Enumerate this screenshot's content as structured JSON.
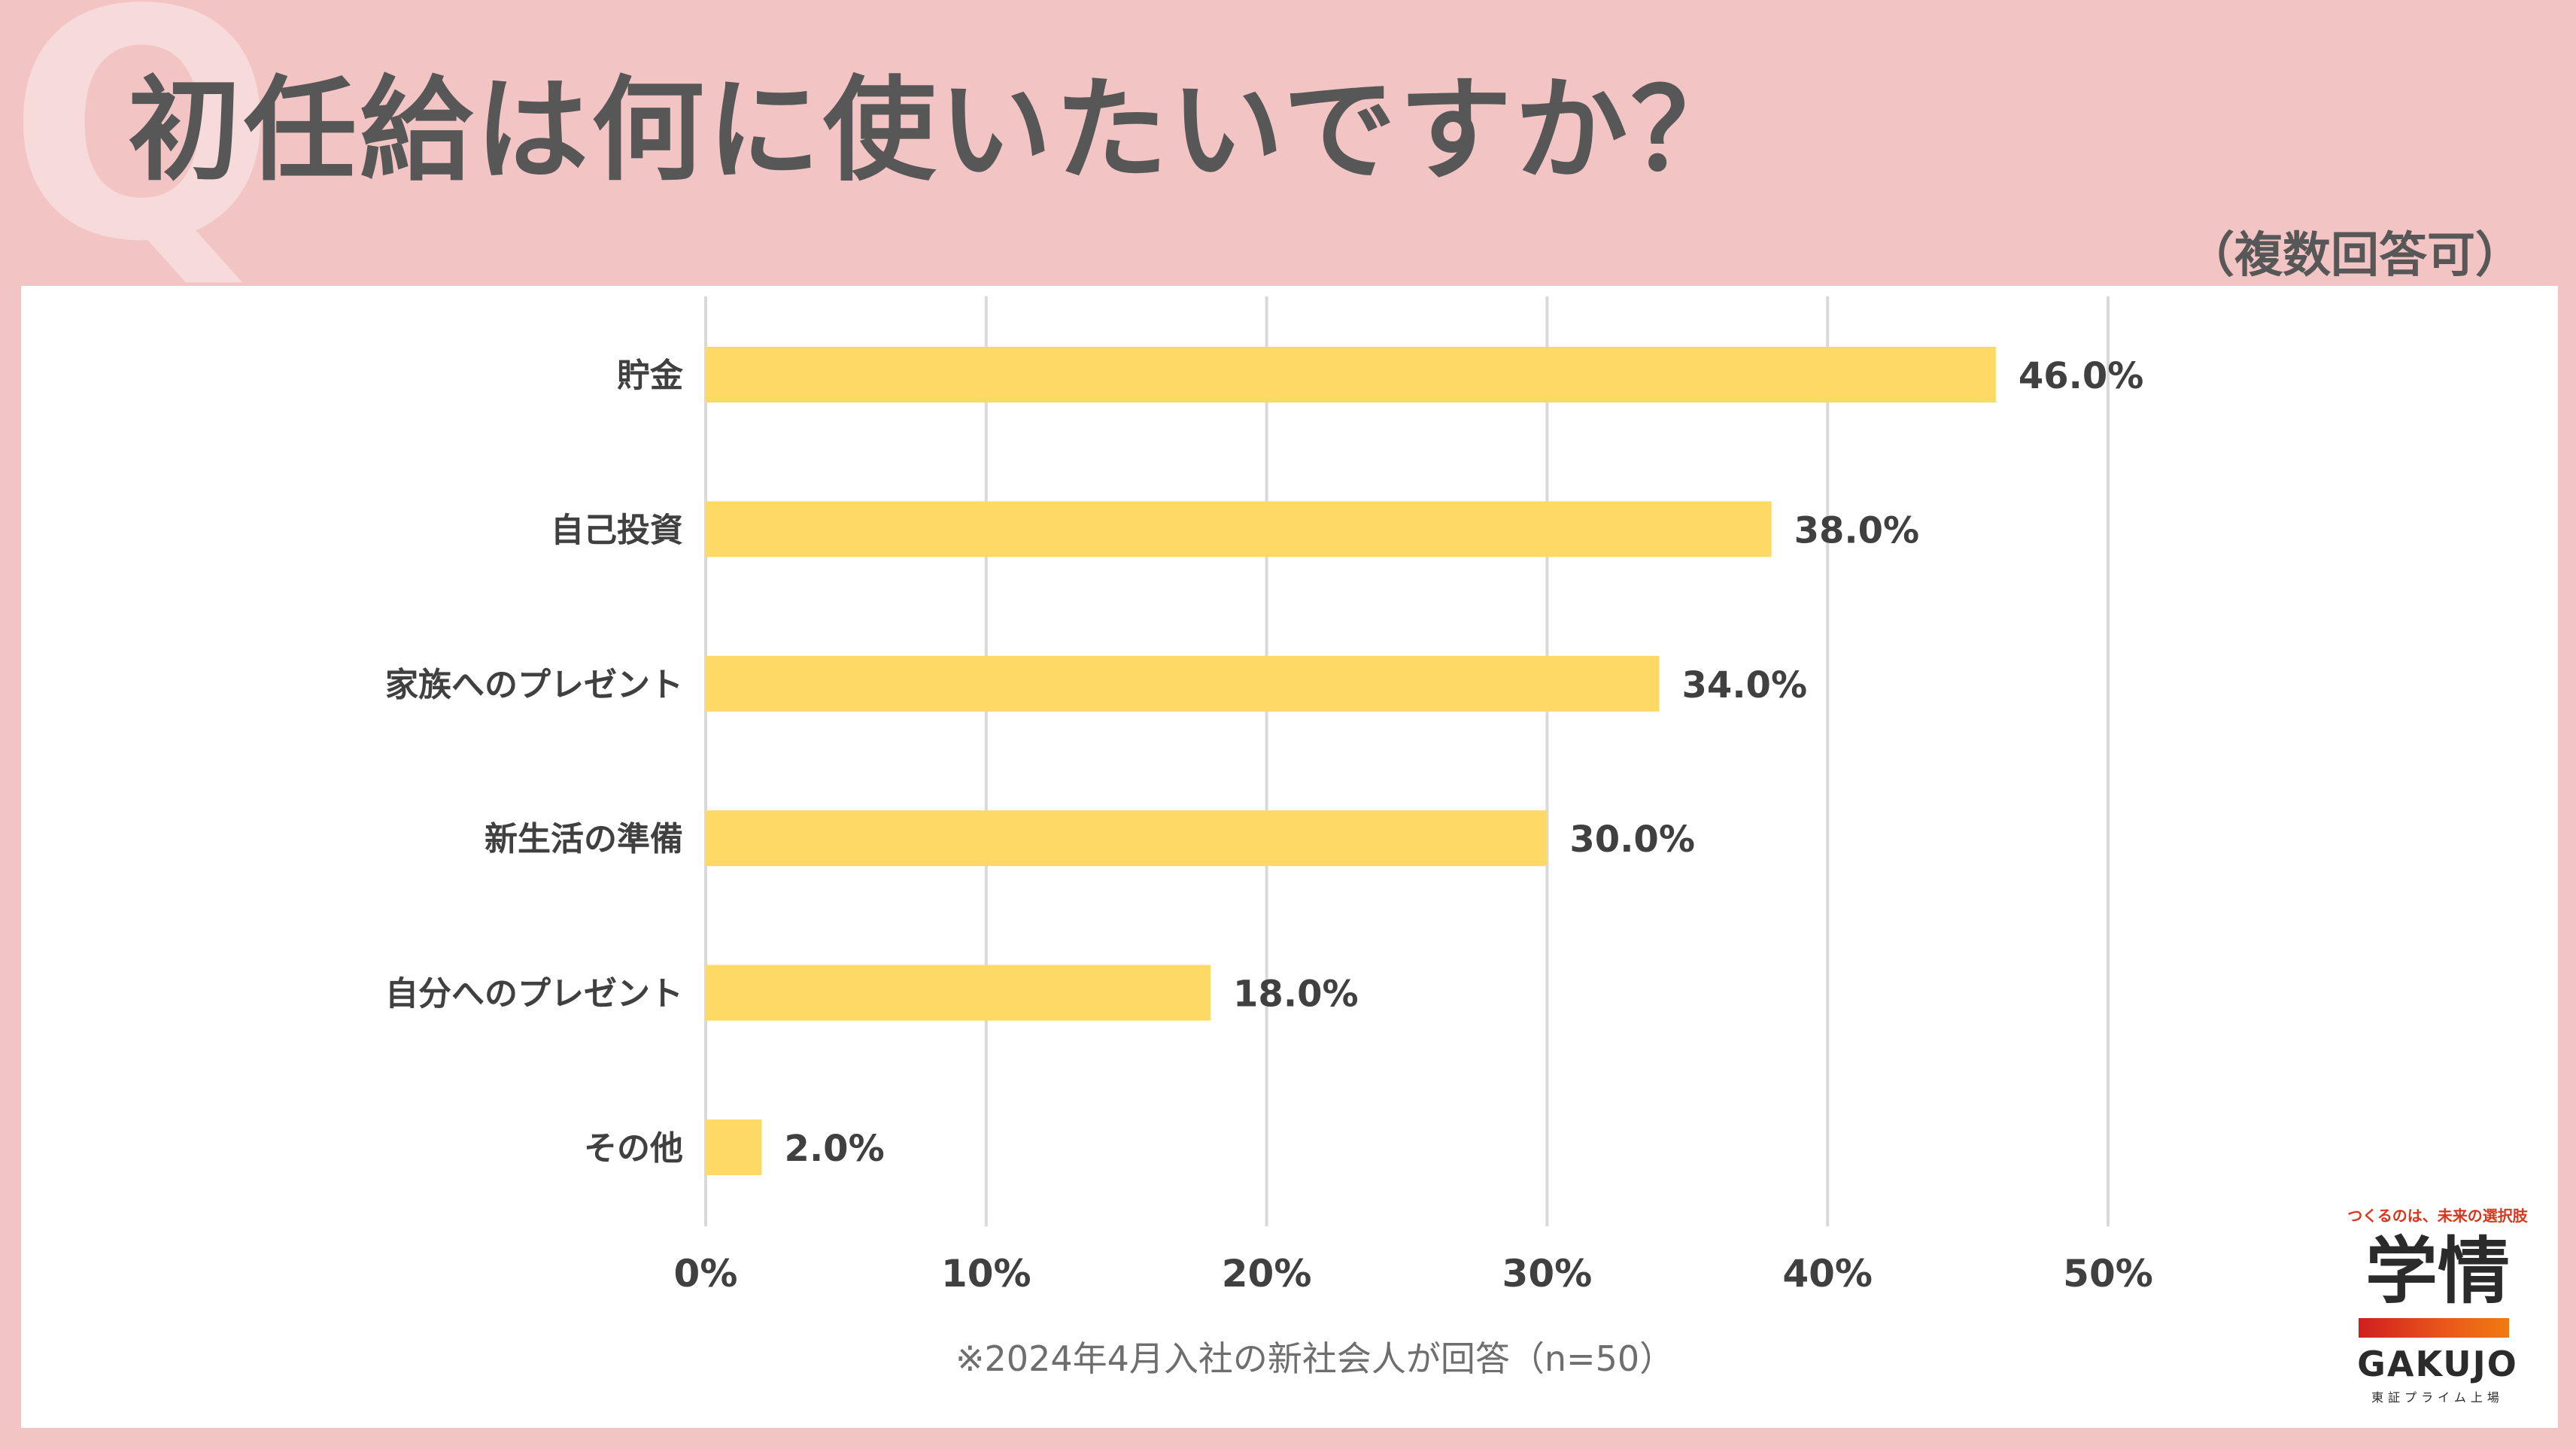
{
  "header": {
    "q_mark": "Q",
    "title": "初任給は何に使いたいですか？",
    "subtitle": "（複数回答可）"
  },
  "chart_data": {
    "type": "bar",
    "orientation": "horizontal",
    "categories": [
      "貯金",
      "自己投資",
      "家族へのプレゼント",
      "新生活の準備",
      "自分へのプレゼント",
      "その他"
    ],
    "values": [
      46.0,
      38.0,
      34.0,
      30.0,
      18.0,
      2.0
    ],
    "value_labels": [
      "46.0%",
      "38.0%",
      "34.0%",
      "30.0%",
      "18.0%",
      "2.0%"
    ],
    "x_ticks": [
      "0%",
      "10%",
      "20%",
      "30%",
      "40%",
      "50%"
    ],
    "xlim": [
      0,
      50
    ],
    "grid": true,
    "bar_color": "#ffd966",
    "grid_color": "#d9d9d9",
    "label_color": "#404040"
  },
  "footnote": "※2024年4月入社の新社会人が回答（n=50）",
  "logo": {
    "tagline": "つくるのは、未来の選択肢",
    "mark": "学情",
    "word": "GAKUJO",
    "sub": "東証プライム上場",
    "accent": "#d6381e"
  },
  "colors": {
    "background": "#f2c4c4",
    "panel": "#ffffff",
    "title": "#575757"
  }
}
